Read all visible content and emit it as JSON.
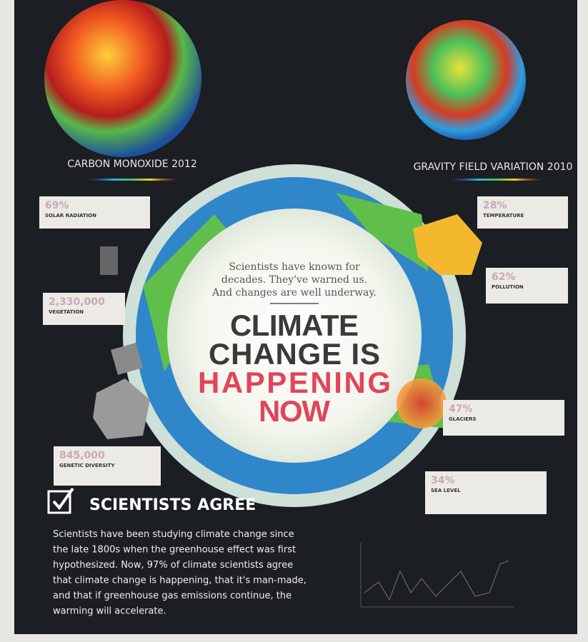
{
  "globes": [
    {
      "label": "CARBON MONOXIDE 2012"
    },
    {
      "label": "GRAVITY FIELD VARIATION 2010"
    }
  ],
  "center": {
    "intro": [
      "Scientists have known for",
      "decades. They've warned us.",
      "And changes are well underway."
    ],
    "headline": [
      "CLIMATE",
      "CHANGE IS",
      "HAPPENING",
      "NOW"
    ]
  },
  "stats": [
    {
      "value": "69%",
      "label": "SOLAR RADIATION"
    },
    {
      "value": "28%",
      "label": "TEMPERATURE"
    },
    {
      "value": "62%",
      "label": "POLLUTION"
    },
    {
      "value": "2,330,000",
      "label": "VEGETATION"
    },
    {
      "value": "47%",
      "label": "GLACIERS"
    },
    {
      "value": "845,000",
      "label": "GENETIC DIVERSITY"
    },
    {
      "value": "34%",
      "label": "SEA LEVEL"
    }
  ],
  "agree": {
    "title": "SCIENTISTS AGREE",
    "lines": [
      "Scientists have been studying climate change since",
      "the late 1800s when the greenhouse effect was first",
      "hypothesized. Now, 97% of climate scientists agree",
      "that climate change is happening, that it's man-made,",
      "and that if greenhouse gas emissions continue, the",
      "warming will accelerate."
    ]
  }
}
